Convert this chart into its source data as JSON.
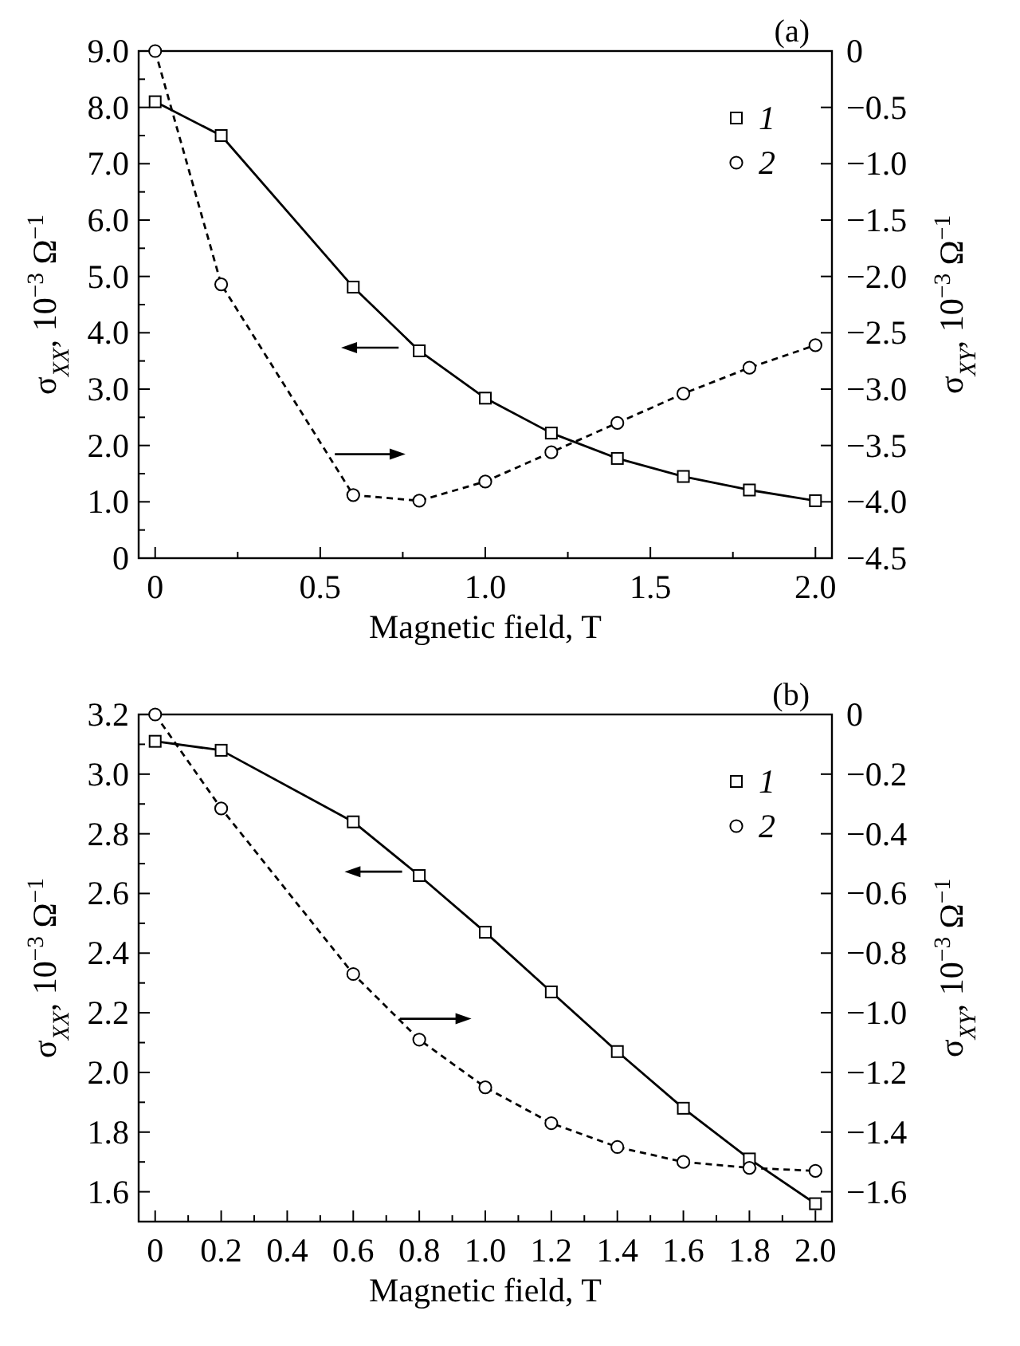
{
  "chart_data": [
    {
      "type": "line",
      "annotations": [
        "(a)"
      ],
      "xlabel": "Magnetic field, T",
      "ylabel": "σ$_{XX}$, 10$^{−3}$ Ω$^{−1}$",
      "y2label": "σ$_{XY}$, 10$^{−3}$ Ω$^{−1}$",
      "x": [
        0,
        0.2,
        0.6,
        0.8,
        1.0,
        1.2,
        1.4,
        1.6,
        1.8,
        2.0
      ],
      "xlim": [
        -0.05,
        2.05
      ],
      "xticks": [
        0,
        {
          "value": 0.25,
          "label": null
        },
        {
          "value": 0.5,
          "label": "0.5"
        },
        {
          "value": 0.75,
          "label": null
        },
        {
          "value": 1,
          "label": "1.0"
        },
        {
          "value": 1.25,
          "label": null
        },
        {
          "value": 1.5,
          "label": "1.5"
        },
        {
          "value": 1.75,
          "label": null
        },
        {
          "value": 2,
          "label": "2.0"
        }
      ],
      "ylim": [
        0,
        9
      ],
      "yticks": [
        0,
        {
          "value": 0.5,
          "label": null
        },
        {
          "value": 1,
          "label": "1.0"
        },
        {
          "value": 1.5,
          "label": null
        },
        {
          "value": 2,
          "label": "2.0"
        },
        {
          "value": 2.5,
          "label": null
        },
        {
          "value": 3,
          "label": "3.0"
        },
        {
          "value": 3.5,
          "label": null
        },
        {
          "value": 4,
          "label": "4.0"
        },
        {
          "value": 4.5,
          "label": null
        },
        {
          "value": 5,
          "label": "5.0"
        },
        {
          "value": 5.5,
          "label": null
        },
        {
          "value": 6,
          "label": "6.0"
        },
        {
          "value": 6.5,
          "label": null
        },
        {
          "value": 7,
          "label": "7.0"
        },
        {
          "value": 7.5,
          "label": null
        },
        {
          "value": 8,
          "label": "8.0"
        },
        {
          "value": 8.5,
          "label": null
        },
        {
          "value": 9,
          "label": "9.0"
        }
      ],
      "y2lim": [
        -4.5,
        0
      ],
      "y2ticks": [
        0,
        {
          "value": -0.5,
          "label": "−0.5"
        },
        {
          "value": -1,
          "label": "−1.0"
        },
        {
          "value": -1.5,
          "label": "−1.5"
        },
        {
          "value": -2,
          "label": "−2.0"
        },
        {
          "value": -2.5,
          "label": "−2.5"
        },
        {
          "value": -3,
          "label": "−3.0"
        },
        {
          "value": -3.5,
          "label": "−3.5"
        },
        {
          "value": -4,
          "label": "−4.0"
        },
        {
          "value": -4.5,
          "label": "−4.5"
        }
      ],
      "legend": "top right",
      "grid": false,
      "series": [
        {
          "name": "1",
          "color": "#000000",
          "marker": "square",
          "line_style": "solid",
          "values": [
            8.1,
            7.5,
            4.81,
            3.68,
            2.84,
            2.22,
            1.77,
            1.45,
            1.21,
            1.02
          ]
        },
        {
          "name": "2",
          "color": "#000000",
          "marker": "circle",
          "line_style": "dashed",
          "axis": "y2",
          "values": [
            0,
            -2.07,
            -3.94,
            -3.99,
            -3.82,
            -3.56,
            -3.3,
            -3.04,
            -2.81,
            -2.61
          ]
        }
      ]
    },
    {
      "type": "line",
      "annotations": [
        "(b)"
      ],
      "xlabel": "Magnetic field, T",
      "ylabel": "σ$_{XX}$, 10$^{−3}$ Ω$^{−1}$",
      "y2label": "σ$_{XY}$, 10$^{−3}$ Ω$^{−1}$",
      "x": [
        0,
        0.2,
        0.6,
        0.8,
        1.0,
        1.2,
        1.4,
        1.6,
        1.8,
        2.0
      ],
      "xlim": [
        -0.05,
        2.05
      ],
      "xticks": [
        0,
        {
          "value": 0.1,
          "label": null
        },
        {
          "value": 0.2,
          "label": "0.2"
        },
        {
          "value": 0.3,
          "label": null
        },
        {
          "value": 0.4,
          "label": "0.4"
        },
        {
          "value": 0.5,
          "label": null
        },
        {
          "value": 0.6,
          "label": "0.6"
        },
        {
          "value": 0.7,
          "label": null
        },
        {
          "value": 0.8,
          "label": "0.8"
        },
        {
          "value": 0.9,
          "label": null
        },
        {
          "value": 1,
          "label": "1.0"
        },
        {
          "value": 1.1,
          "label": null
        },
        {
          "value": 1.2,
          "label": "1.2"
        },
        {
          "value": 1.3,
          "label": null
        },
        {
          "value": 1.4,
          "label": "1.4"
        },
        {
          "value": 1.5,
          "label": null
        },
        {
          "value": 1.6,
          "label": "1.6"
        },
        {
          "value": 1.7,
          "label": null
        },
        {
          "value": 1.8,
          "label": "1.8"
        },
        {
          "value": 1.9,
          "label": null
        },
        {
          "value": 2,
          "label": "2.0"
        }
      ],
      "ylim": [
        1.5,
        3.2
      ],
      "yticks": [
        1.6,
        {
          "value": 1.7,
          "label": null
        },
        1.8,
        {
          "value": 1.9,
          "label": null
        },
        {
          "value": 2,
          "label": "2.0"
        },
        {
          "value": 2.1,
          "label": null
        },
        2.2,
        {
          "value": 2.3,
          "label": null
        },
        2.4,
        {
          "value": 2.5,
          "label": null
        },
        2.6,
        {
          "value": 2.7,
          "label": null
        },
        2.8,
        {
          "value": 2.9,
          "label": null
        },
        {
          "value": 3,
          "label": "3.0"
        },
        {
          "value": 3.1,
          "label": null
        },
        3.2
      ],
      "y2lim": [
        -1.7,
        0
      ],
      "y2ticks": [
        0,
        {
          "value": -0.2,
          "label": "−0.2"
        },
        {
          "value": -0.4,
          "label": "−0.4"
        },
        {
          "value": -0.6,
          "label": "−0.6"
        },
        {
          "value": -0.8,
          "label": "−0.8"
        },
        {
          "value": -1,
          "label": "−1.0"
        },
        {
          "value": -1.2,
          "label": "−1.2"
        },
        {
          "value": -1.4,
          "label": "−1.4"
        },
        {
          "value": -1.6,
          "label": "−1.6"
        }
      ],
      "legend": "top right",
      "grid": false,
      "series": [
        {
          "name": "1",
          "color": "#000000",
          "marker": "square",
          "line_style": "solid",
          "values": [
            3.11,
            3.08,
            2.84,
            2.66,
            2.47,
            2.27,
            2.07,
            1.88,
            1.71,
            1.56
          ]
        },
        {
          "name": "2",
          "color": "#000000",
          "marker": "circle",
          "line_style": "dashed",
          "axis": "y2",
          "values": [
            0,
            -0.315,
            -0.87,
            -1.09,
            -1.25,
            -1.37,
            -1.45,
            -1.5,
            -1.52,
            -1.53
          ]
        }
      ]
    }
  ]
}
